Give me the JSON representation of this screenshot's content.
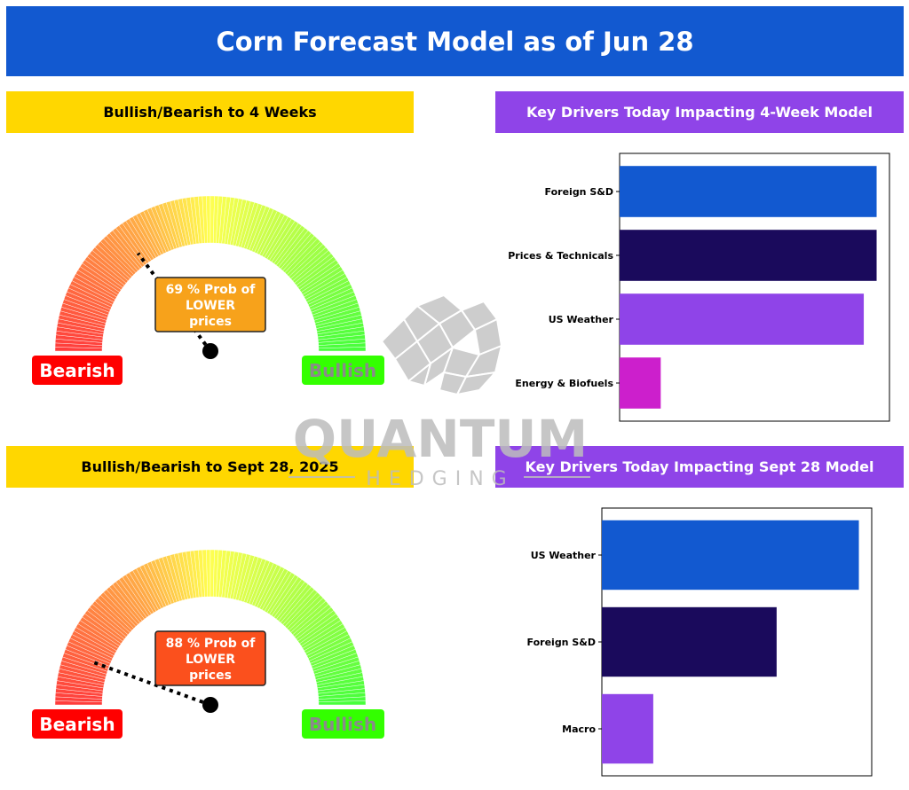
{
  "title": "Corn Forecast Model as of Jun 28",
  "panels": {
    "gauge1_header": "Bullish/Bearish to 4 Weeks",
    "drivers1_header": "Key Drivers Today Impacting 4-Week Model",
    "gauge2_header": "Bullish/Bearish to Sept 28, 2025",
    "drivers2_header": "Key Drivers Today Impacting Sept 28 Model"
  },
  "watermark": {
    "line1": "QUANTUM",
    "line2": "HEDGING"
  },
  "gauges": [
    {
      "probability": 69,
      "label_line1": "69 % Prob of",
      "label_line2": "LOWER",
      "label_line3": "prices",
      "left_label": "Bearish",
      "right_label": "Bullish",
      "box_color": "#f7a21b"
    },
    {
      "probability": 88,
      "label_line1": "88 % Prob of",
      "label_line2": "LOWER",
      "label_line3": "prices",
      "left_label": "Bearish",
      "right_label": "Bullish",
      "box_color": "#fb501d"
    }
  ],
  "colors": {
    "blue": "#1259d0",
    "navy": "#1a0a5c",
    "purple": "#8f44e8",
    "magenta": "#cc1fcc",
    "yellow": "#ffd700",
    "bearish": "#ff0000",
    "bullish": "#33ff00"
  },
  "chart_data": [
    {
      "type": "gauge",
      "title": "Bullish/Bearish to 4 Weeks",
      "value": 69,
      "unit": "% Prob of LOWER prices"
    },
    {
      "type": "bar",
      "orientation": "horizontal",
      "title": "Key Drivers Today Impacting 4-Week Model",
      "categories": [
        "Foreign S&D",
        "Prices & Technicals",
        "US Weather",
        "Energy & Biofuels"
      ],
      "values": [
        1.0,
        1.0,
        0.95,
        0.16
      ],
      "colors": [
        "#1259d0",
        "#1a0a5c",
        "#8f44e8",
        "#cc1fcc"
      ],
      "xlim": [
        0,
        1.05
      ]
    },
    {
      "type": "gauge",
      "title": "Bullish/Bearish to Sept 28, 2025",
      "value": 88,
      "unit": "% Prob of LOWER prices"
    },
    {
      "type": "bar",
      "orientation": "horizontal",
      "title": "Key Drivers Today Impacting Sept 28 Model",
      "categories": [
        "US Weather",
        "Foreign S&D",
        "Macro"
      ],
      "values": [
        1.0,
        0.68,
        0.2
      ],
      "colors": [
        "#1259d0",
        "#1a0a5c",
        "#8f44e8"
      ],
      "xlim": [
        0,
        1.05
      ]
    }
  ]
}
